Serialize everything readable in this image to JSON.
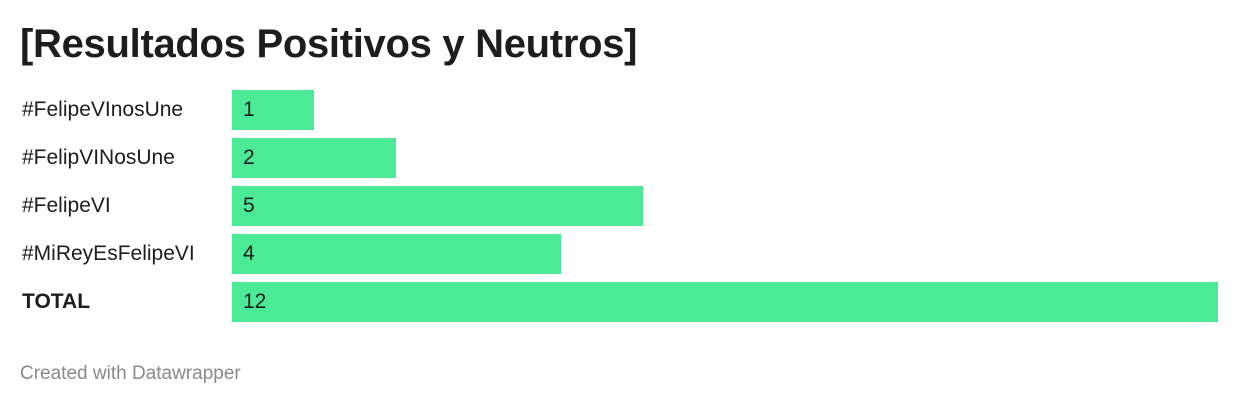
{
  "header": {
    "title": "[Resultados Positivos y Neutros]"
  },
  "footer": {
    "credit": "Created with Datawrapper"
  },
  "colors": {
    "bar": "#4aea97"
  },
  "chart_data": {
    "type": "bar",
    "orientation": "horizontal",
    "title": "[Resultados Positivos y Neutros]",
    "categories": [
      "#FelipeVInosUne",
      "#FelipVINosUne",
      "#FelipeVI",
      "#MiReyEsFelipeVI",
      "TOTAL"
    ],
    "values": [
      1,
      2,
      5,
      4,
      12
    ],
    "xlim": [
      0,
      12
    ],
    "grid": false,
    "legend": "none"
  }
}
